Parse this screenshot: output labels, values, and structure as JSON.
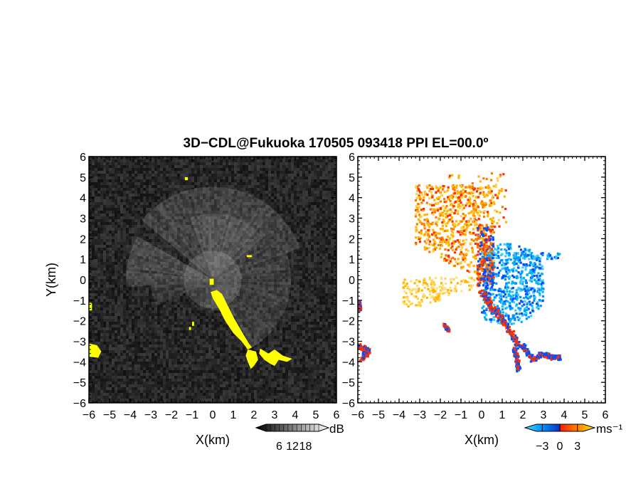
{
  "title": "3D−CDL@Fukuoka 170505 093418 PPI EL=00.0º",
  "colors": {
    "background_left": "#1c1c1c",
    "highlight": "#ffff00",
    "approach": "#0050ff",
    "approach_light": "#00b4f0",
    "recede": "#ffb400",
    "recede_strong": "#ff3000"
  },
  "chart_data": [
    {
      "type": "heatmap",
      "name": "snr-panel",
      "quantity": "SNR",
      "xlabel": "X(km)",
      "ylabel": "Y(km)",
      "xlim": [
        -6,
        6
      ],
      "ylim": [
        -6,
        6
      ],
      "ticks": [
        "−6",
        "−5",
        "−4",
        "−3",
        "−2",
        "−1",
        "0",
        "1",
        "2",
        "3",
        "4",
        "5",
        "6"
      ],
      "colorbar": {
        "unit": "dB",
        "ticks": [
          "6",
          "12",
          "18"
        ],
        "values": [
          6,
          12,
          18
        ]
      }
    },
    {
      "type": "heatmap",
      "name": "doppler-velocity-panel",
      "quantity": "Doppler velocity",
      "xlabel": "X(km)",
      "ylabel": "",
      "xlim": [
        -6,
        6
      ],
      "ylim": [
        -6,
        6
      ],
      "ticks": [
        "−6",
        "−5",
        "−4",
        "−3",
        "−2",
        "−1",
        "0",
        "1",
        "2",
        "3",
        "4",
        "5",
        "6"
      ],
      "colorbar": {
        "unit": "ms⁻¹",
        "ticks": [
          "−3",
          "0",
          "3"
        ],
        "values": [
          -3,
          0,
          3
        ]
      }
    }
  ]
}
